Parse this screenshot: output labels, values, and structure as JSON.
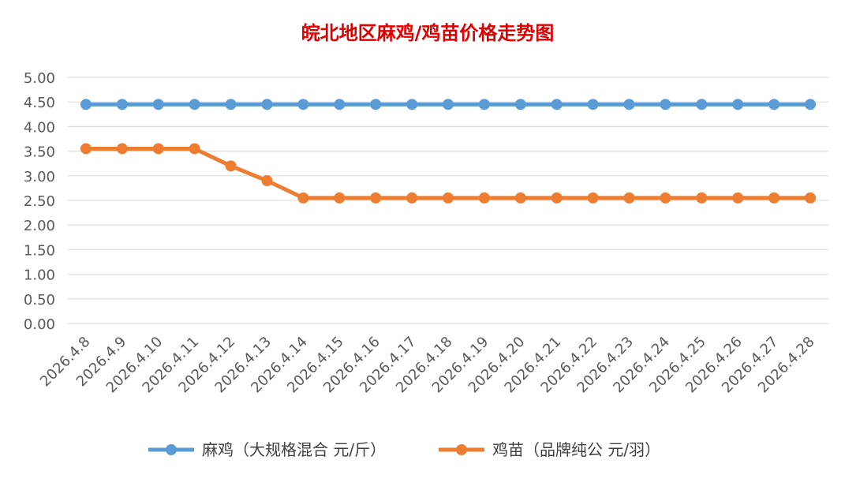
{
  "chart_data": {
    "type": "line",
    "title": "皖北地区麻鸡/鸡苗价格走势图",
    "categories": [
      "2026.4.8",
      "2026.4.9",
      "2026.4.10",
      "2026.4.11",
      "2026.4.12",
      "2026.4.13",
      "2026.4.14",
      "2026.4.15",
      "2026.4.16",
      "2026.4.17",
      "2026.4.18",
      "2026.4.19",
      "2026.4.20",
      "2026.4.21",
      "2026.4.22",
      "2026.4.23",
      "2026.4.24",
      "2026.4.25",
      "2026.4.26",
      "2026.4.27",
      "2026.4.28"
    ],
    "y_ticks": [
      "0.00",
      "0.50",
      "1.00",
      "1.50",
      "2.00",
      "2.50",
      "3.00",
      "3.50",
      "4.00",
      "4.50",
      "5.00"
    ],
    "ylim": [
      0,
      5
    ],
    "grid": true,
    "legend_position": "bottom",
    "series": [
      {
        "name": "麻鸡（大规格混合 元/斤）",
        "color": "#5b9bd5",
        "values": [
          4.45,
          4.45,
          4.45,
          4.45,
          4.45,
          4.45,
          4.45,
          4.45,
          4.45,
          4.45,
          4.45,
          4.45,
          4.45,
          4.45,
          4.45,
          4.45,
          4.45,
          4.45,
          4.45,
          4.45,
          4.45
        ]
      },
      {
        "name": "鸡苗（品牌纯公 元/羽）",
        "color": "#ed7d31",
        "values": [
          3.55,
          3.55,
          3.55,
          3.55,
          3.2,
          2.9,
          2.55,
          2.55,
          2.55,
          2.55,
          2.55,
          2.55,
          2.55,
          2.55,
          2.55,
          2.55,
          2.55,
          2.55,
          2.55,
          2.55,
          2.55
        ]
      }
    ]
  }
}
